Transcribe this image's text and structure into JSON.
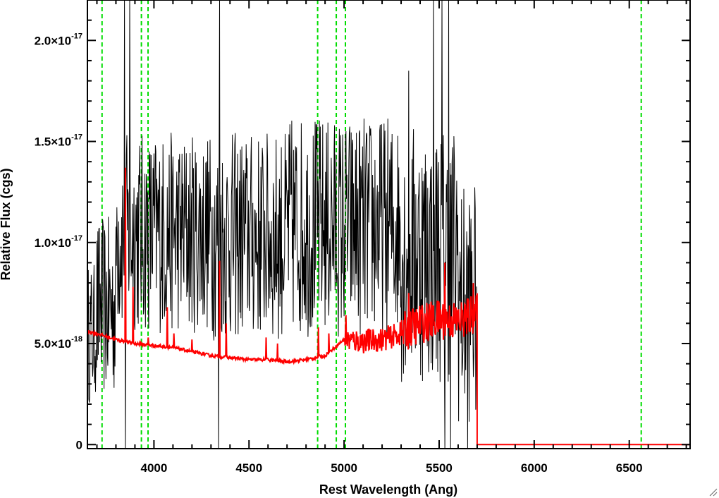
{
  "chart_data": {
    "type": "line",
    "xlabel": "Rest Wavelength (Ang)",
    "ylabel": "Relative Flux (cgs)",
    "xlim": [
      3650,
      6820
    ],
    "ylim": [
      -2e-19,
      2.2e-17
    ],
    "x_ticks": [
      {
        "value": 4000,
        "label": "4000"
      },
      {
        "value": 4500,
        "label": "4500"
      },
      {
        "value": 5000,
        "label": "5000"
      },
      {
        "value": 5500,
        "label": "5500"
      },
      {
        "value": 6000,
        "label": "6000"
      },
      {
        "value": 6500,
        "label": "6500"
      }
    ],
    "x_minor_step": 100,
    "y_ticks": [
      {
        "value": 0,
        "mantissa": "0",
        "exponent": ""
      },
      {
        "value": 5e-18,
        "mantissa": "5.0×10",
        "exponent": "-18"
      },
      {
        "value": 1e-17,
        "mantissa": "1.0×10",
        "exponent": "-17"
      },
      {
        "value": 1.5e-17,
        "mantissa": "1.5×10",
        "exponent": "-17"
      },
      {
        "value": 2e-17,
        "mantissa": "2.0×10",
        "exponent": "-17"
      }
    ],
    "y_minor_step": 1e-18,
    "grid": false,
    "reference_lines": {
      "color": "#00dd00",
      "style": "dashed",
      "x": [
        3727,
        3934,
        3969,
        4861,
        4959,
        5007,
        6563
      ]
    },
    "series": [
      {
        "color": "#000000",
        "x_range": [
          3650,
          5700
        ],
        "x_step": 2.5,
        "segments": [
          {
            "x": [
              3650,
              3690
            ],
            "center": 5.5e-18,
            "noise": 3.5e-18
          },
          {
            "x": [
              3690,
              3800
            ],
            "center": 6.8e-18,
            "noise": 4.5e-18
          },
          {
            "x": [
              3800,
              4300
            ],
            "center": 1.05e-17,
            "noise": 5e-18
          },
          {
            "x": [
              4300,
              4700
            ],
            "center": 1.03e-17,
            "noise": 5.2e-18
          },
          {
            "x": [
              4700,
              5300
            ],
            "center": 1.08e-17,
            "noise": 5.5e-18
          },
          {
            "x": [
              5300,
              5600
            ],
            "center": 9.5e-18,
            "noise": 6.5e-18
          },
          {
            "x": [
              5600,
              5700
            ],
            "center": 7e-18,
            "noise": 6e-18
          }
        ],
        "spikes": [
          {
            "x": 3845,
            "y": 2.2e-17
          },
          {
            "x": 3872,
            "y": 2.2e-17
          },
          {
            "x": 3850,
            "y": -2e-19
          },
          {
            "x": 4345,
            "y": 2.2e-17
          },
          {
            "x": 4340,
            "y": -2e-19
          },
          {
            "x": 5340,
            "y": 1.85e-17
          },
          {
            "x": 5470,
            "y": 2.2e-17
          },
          {
            "x": 5515,
            "y": 2.2e-17
          },
          {
            "x": 5550,
            "y": 2.2e-17
          },
          {
            "x": 5530,
            "y": -2e-19
          },
          {
            "x": 5560,
            "y": -2e-19
          },
          {
            "x": 5650,
            "y": -2e-19
          }
        ],
        "after_end_value": 0
      },
      {
        "color": "#ff0000",
        "continuum": [
          {
            "x": 3650,
            "y": 5.6e-18
          },
          {
            "x": 3700,
            "y": 5.5e-18
          },
          {
            "x": 3800,
            "y": 5.2e-18
          },
          {
            "x": 3900,
            "y": 5e-18
          },
          {
            "x": 4000,
            "y": 4.9e-18
          },
          {
            "x": 4100,
            "y": 4.8e-18
          },
          {
            "x": 4200,
            "y": 4.6e-18
          },
          {
            "x": 4300,
            "y": 4.4e-18
          },
          {
            "x": 4400,
            "y": 4.3e-18
          },
          {
            "x": 4500,
            "y": 4.2e-18
          },
          {
            "x": 4600,
            "y": 4.2e-18
          },
          {
            "x": 4700,
            "y": 4.1e-18
          },
          {
            "x": 4800,
            "y": 4.2e-18
          },
          {
            "x": 4900,
            "y": 4.4e-18
          },
          {
            "x": 5000,
            "y": 5.2e-18
          },
          {
            "x": 5100,
            "y": 5.1e-18
          },
          {
            "x": 5200,
            "y": 5.2e-18
          },
          {
            "x": 5300,
            "y": 5.5e-18
          },
          {
            "x": 5400,
            "y": 6e-18
          },
          {
            "x": 5500,
            "y": 6.2e-18
          },
          {
            "x": 5600,
            "y": 6.1e-18
          },
          {
            "x": 5690,
            "y": 6.5e-18
          }
        ],
        "spikes": [
          {
            "x": 3850,
            "y": 1.37e-17
          },
          {
            "x": 3890,
            "y": 7.8e-18
          },
          {
            "x": 3970,
            "y": 5.3e-18
          },
          {
            "x": 4070,
            "y": 6.8e-18
          },
          {
            "x": 4105,
            "y": 5.5e-18
          },
          {
            "x": 4200,
            "y": 5.2e-18
          },
          {
            "x": 4345,
            "y": 9.1e-18
          },
          {
            "x": 4380,
            "y": 6e-18
          },
          {
            "x": 4590,
            "y": 5.3e-18
          },
          {
            "x": 4650,
            "y": 5e-18
          },
          {
            "x": 4865,
            "y": 5.8e-18
          },
          {
            "x": 4920,
            "y": 5.5e-18
          },
          {
            "x": 5010,
            "y": 6.4e-18
          },
          {
            "x": 5340,
            "y": 7.5e-18
          },
          {
            "x": 5530,
            "y": 9e-18
          },
          {
            "x": 5680,
            "y": 8e-18
          }
        ],
        "end_x": 5700,
        "after_end_value": 0
      }
    ]
  }
}
